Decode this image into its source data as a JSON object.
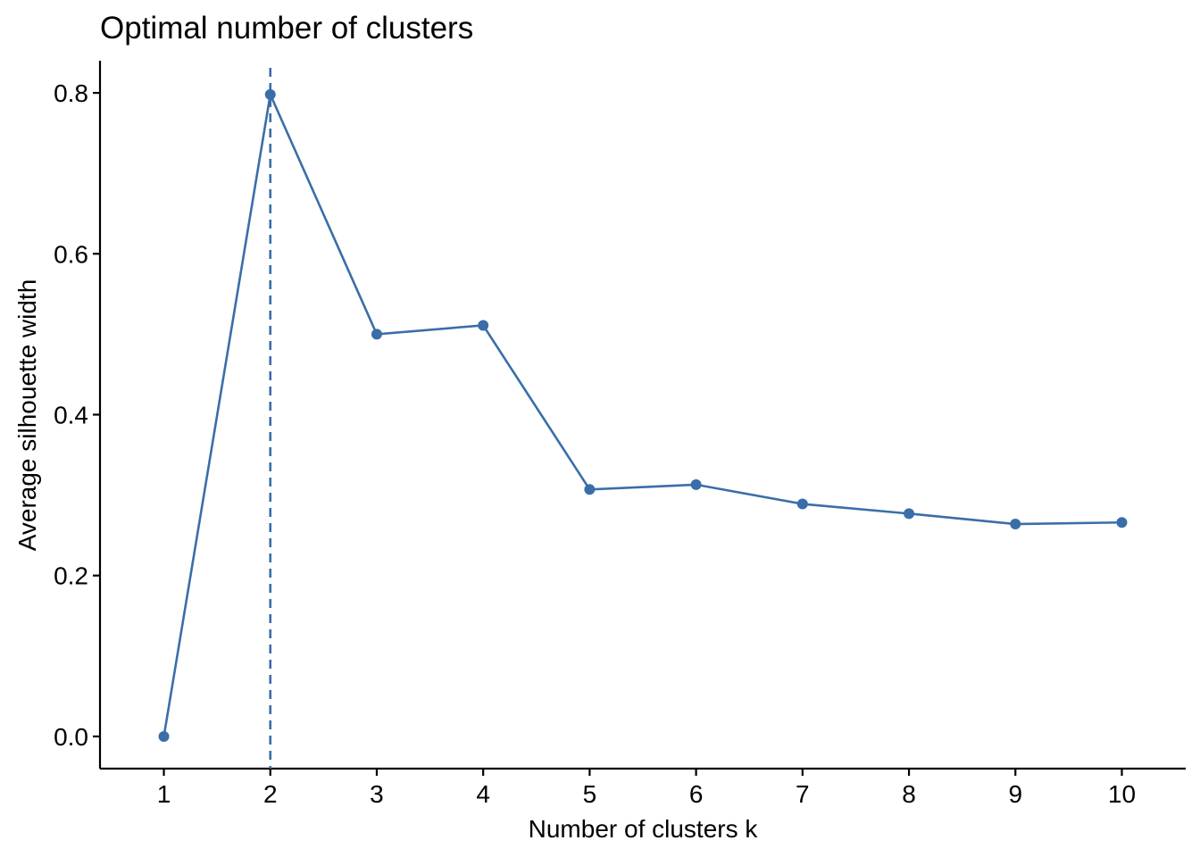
{
  "chart_data": {
    "type": "line",
    "title": "Optimal number of clusters",
    "xlabel": "Number of clusters k",
    "ylabel": "Average silhouette width",
    "x": [
      1,
      2,
      3,
      4,
      5,
      6,
      7,
      8,
      9,
      10
    ],
    "x_tick_labels": [
      "1",
      "2",
      "3",
      "4",
      "5",
      "6",
      "7",
      "8",
      "9",
      "10"
    ],
    "series": [
      {
        "values": [
          0.0,
          0.798,
          0.5,
          0.511,
          0.307,
          0.313,
          0.289,
          0.277,
          0.264,
          0.266
        ]
      }
    ],
    "y_ticks": [
      0.0,
      0.2,
      0.4,
      0.6,
      0.8
    ],
    "y_tick_labels": [
      "0.0",
      "0.2",
      "0.4",
      "0.6",
      "0.8"
    ],
    "xlim": [
      0.4,
      10.6
    ],
    "ylim": [
      -0.04,
      0.84
    ],
    "reference_line": {
      "orientation": "vertical",
      "x": 2,
      "style": "dashed"
    },
    "grid": false,
    "legend": "none",
    "colors": {
      "series": "#3A6EA8",
      "axis": "#000000"
    }
  }
}
